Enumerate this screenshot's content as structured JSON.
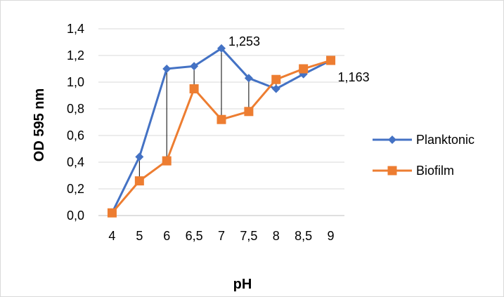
{
  "chart_data": {
    "type": "line",
    "categories": [
      "4",
      "5",
      "6",
      "6,5",
      "7",
      "7,5",
      "8",
      "8,5",
      "9"
    ],
    "series": [
      {
        "name": "Planktonic",
        "color": "#4472c4",
        "marker": "diamond",
        "values": [
          0.02,
          0.44,
          1.1,
          1.12,
          1.253,
          1.03,
          0.95,
          1.06,
          1.163
        ]
      },
      {
        "name": "Biofilm",
        "color": "#ed7d31",
        "marker": "square",
        "values": [
          0.02,
          0.26,
          0.41,
          0.95,
          0.72,
          0.78,
          1.02,
          1.1,
          1.163
        ]
      }
    ],
    "drop_lines": true,
    "data_labels": [
      {
        "series": "Planktonic",
        "category": "7",
        "text": "1,253"
      },
      {
        "series": "Planktonic",
        "category": "9",
        "text": "1,163"
      }
    ],
    "xlabel": "pH",
    "ylabel": "OD 595 nm",
    "ylim": [
      0,
      1.4
    ],
    "yticks": [
      "0,0",
      "0,2",
      "0,4",
      "0,6",
      "0,8",
      "1,0",
      "1,2",
      "1,4"
    ],
    "grid": true,
    "legend": "right"
  }
}
